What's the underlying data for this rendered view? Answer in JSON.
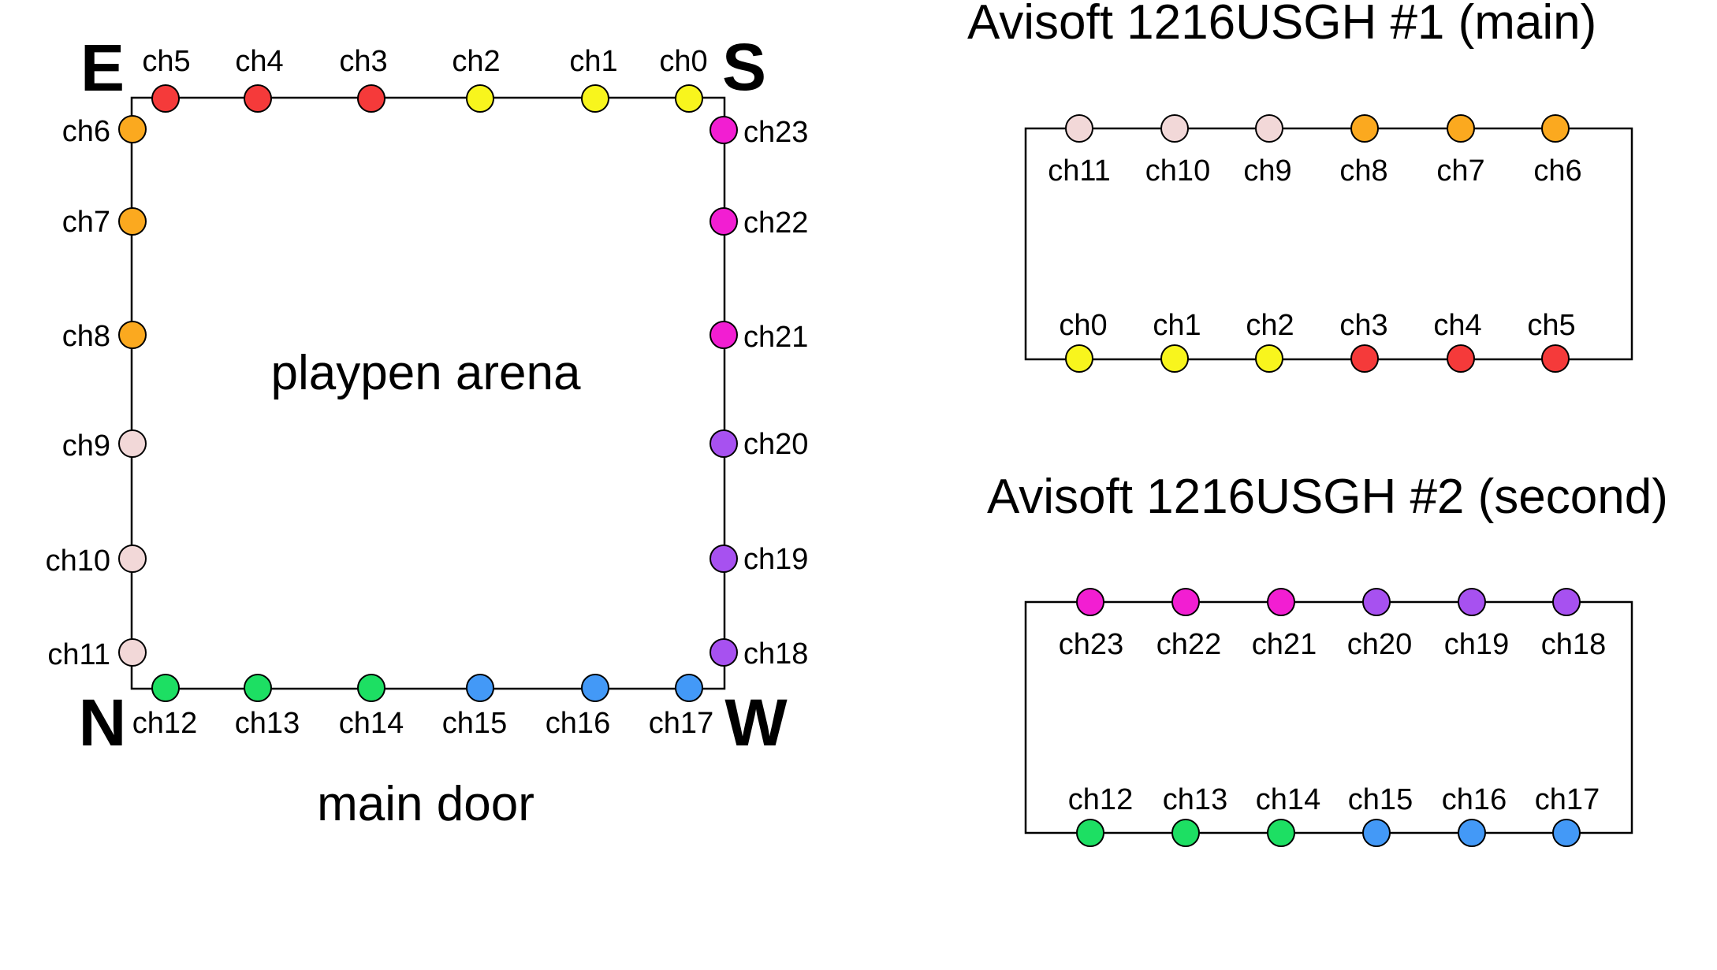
{
  "colors": {
    "red": "#f53a3a",
    "yellow": "#f8f51d",
    "orange": "#fba91f",
    "pink": "#f2d8d8",
    "magenta": "#f21ed2",
    "purple": "#a751f0",
    "green": "#1ddf63",
    "blue": "#4399f7",
    "stroke": "#000000"
  },
  "arena": {
    "label": "playpen arena",
    "door_label": "main door",
    "compass": {
      "east": "E",
      "south": "S",
      "north": "N",
      "west": "W"
    },
    "mics": [
      {
        "ch": "ch5",
        "color": "red"
      },
      {
        "ch": "ch4",
        "color": "red"
      },
      {
        "ch": "ch3",
        "color": "red"
      },
      {
        "ch": "ch2",
        "color": "yellow"
      },
      {
        "ch": "ch1",
        "color": "yellow"
      },
      {
        "ch": "ch0",
        "color": "yellow"
      },
      {
        "ch": "ch6",
        "color": "orange"
      },
      {
        "ch": "ch7",
        "color": "orange"
      },
      {
        "ch": "ch8",
        "color": "orange"
      },
      {
        "ch": "ch9",
        "color": "pink"
      },
      {
        "ch": "ch10",
        "color": "pink"
      },
      {
        "ch": "ch11",
        "color": "pink"
      },
      {
        "ch": "ch23",
        "color": "magenta"
      },
      {
        "ch": "ch22",
        "color": "magenta"
      },
      {
        "ch": "ch21",
        "color": "magenta"
      },
      {
        "ch": "ch20",
        "color": "purple"
      },
      {
        "ch": "ch19",
        "color": "purple"
      },
      {
        "ch": "ch18",
        "color": "purple"
      },
      {
        "ch": "ch12",
        "color": "green"
      },
      {
        "ch": "ch13",
        "color": "green"
      },
      {
        "ch": "ch14",
        "color": "green"
      },
      {
        "ch": "ch15",
        "color": "blue"
      },
      {
        "ch": "ch16",
        "color": "blue"
      },
      {
        "ch": "ch17",
        "color": "blue"
      }
    ]
  },
  "device1": {
    "title": "Avisoft 1216USGH #1 (main)",
    "top_row": [
      {
        "ch": "ch11",
        "color": "pink"
      },
      {
        "ch": "ch10",
        "color": "pink"
      },
      {
        "ch": "ch9",
        "color": "pink"
      },
      {
        "ch": "ch8",
        "color": "orange"
      },
      {
        "ch": "ch7",
        "color": "orange"
      },
      {
        "ch": "ch6",
        "color": "orange"
      }
    ],
    "bottom_row": [
      {
        "ch": "ch0",
        "color": "yellow"
      },
      {
        "ch": "ch1",
        "color": "yellow"
      },
      {
        "ch": "ch2",
        "color": "yellow"
      },
      {
        "ch": "ch3",
        "color": "red"
      },
      {
        "ch": "ch4",
        "color": "red"
      },
      {
        "ch": "ch5",
        "color": "red"
      }
    ]
  },
  "device2": {
    "title": "Avisoft 1216USGH #2 (second)",
    "top_row": [
      {
        "ch": "ch23",
        "color": "magenta"
      },
      {
        "ch": "ch22",
        "color": "magenta"
      },
      {
        "ch": "ch21",
        "color": "magenta"
      },
      {
        "ch": "ch20",
        "color": "purple"
      },
      {
        "ch": "ch19",
        "color": "purple"
      },
      {
        "ch": "ch18",
        "color": "purple"
      }
    ],
    "bottom_row": [
      {
        "ch": "ch12",
        "color": "green"
      },
      {
        "ch": "ch13",
        "color": "green"
      },
      {
        "ch": "ch14",
        "color": "green"
      },
      {
        "ch": "ch15",
        "color": "blue"
      },
      {
        "ch": "ch16",
        "color": "blue"
      },
      {
        "ch": "ch17",
        "color": "blue"
      }
    ]
  }
}
